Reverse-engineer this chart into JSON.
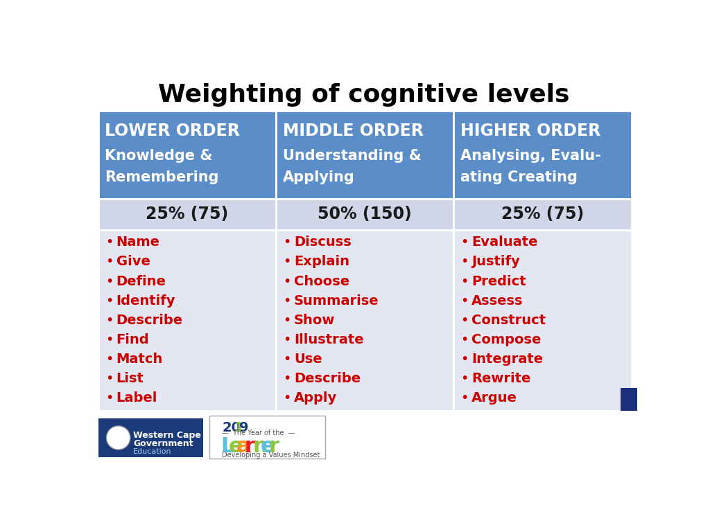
{
  "title": "Weighting of cognitive levels",
  "title_fontsize": 26,
  "title_fontweight": "bold",
  "header_bg_color": "#5B8DC8",
  "header_text_color": "#FFFFFF",
  "percentage_bg_color": "#D0D5E8",
  "content_bg_color": "#E4E7F2",
  "bullet_text_color": "#CC0000",
  "percentage_text_color": "#1a1a1a",
  "border_color": "#FFFFFF",
  "columns": [
    {
      "header_line1": "LOWER ORDER",
      "header_line2": "Knowledge &",
      "header_line3": "Remembering",
      "percentage": "25% (75)",
      "items": [
        "Name",
        "Give",
        "Define",
        "Identify",
        "Describe",
        "Find",
        "Match",
        "List",
        "Label"
      ]
    },
    {
      "header_line1": "MIDDLE ORDER",
      "header_line2": "Understanding &",
      "header_line3": "Applying",
      "percentage": "50% (150)",
      "items": [
        "Discuss",
        "Explain",
        "Choose",
        "Summarise",
        "Show",
        "Illustrate",
        "Use",
        "Describe",
        "Apply"
      ]
    },
    {
      "header_line1": "HIGHER ORDER",
      "header_line2": "Analysing, Evalu-",
      "header_line3": "ating Creating",
      "percentage": "25% (75)",
      "items": [
        "Evaluate",
        "Justify",
        "Predict",
        "Assess",
        "Construct",
        "Compose",
        "Integrate",
        "Rewrite",
        "Argue"
      ]
    }
  ],
  "footer_accent_color": "#1B2F7E",
  "background_color": "#FFFFFF",
  "wcg_bg_color": "#1B3A7A",
  "wcg_text": "Western Cape\nGovernment\nEducation"
}
